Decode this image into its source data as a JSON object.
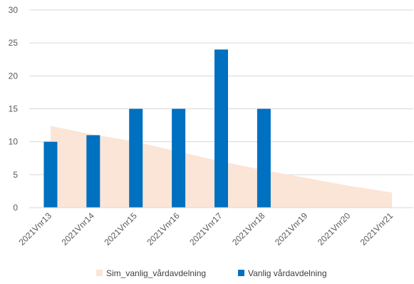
{
  "chart_data": {
    "type": "bar",
    "categories": [
      "2021Vnr13",
      "2021Vnr14",
      "2021Vnr15",
      "2021Vnr16",
      "2021Vnr17",
      "2021Vnr18",
      "2021Vnr19",
      "2021Vnr20",
      "2021Vnr21"
    ],
    "ylim": [
      0,
      30
    ],
    "yticks": [
      0,
      5,
      10,
      15,
      20,
      25,
      30
    ],
    "grid": true,
    "legend_position": "bottom",
    "series": [
      {
        "name": "Sim_vanlig_vårdavdelning",
        "kind": "area",
        "color": "#fbe5d6",
        "values": [
          12.4,
          11.1,
          10.0,
          8.5,
          7.0,
          5.7,
          4.5,
          3.3,
          2.3
        ]
      },
      {
        "name": "Vanlig vårdavdelning",
        "kind": "bar",
        "color": "#0070c0",
        "values": [
          10,
          11,
          15,
          15,
          24,
          15,
          null,
          null,
          null
        ]
      }
    ]
  }
}
